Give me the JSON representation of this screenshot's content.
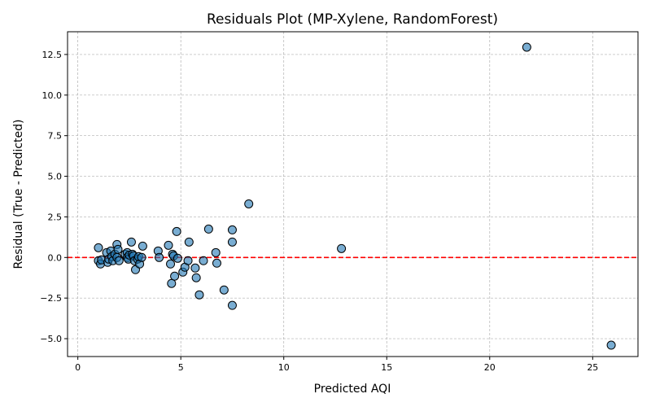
{
  "chart_data": {
    "type": "scatter",
    "title": "Residuals Plot (MP-Xylene, RandomForest)",
    "xlabel": "Predicted AQI",
    "ylabel": "Residual (True - Predicted)",
    "xlim": [
      -0.5,
      27.2
    ],
    "ylim": [
      -6.1,
      13.9
    ],
    "x_ticks": [
      0,
      5,
      10,
      15,
      20,
      25
    ],
    "y_ticks": [
      -5.0,
      -2.5,
      0.0,
      2.5,
      5.0,
      7.5,
      10.0,
      12.5
    ],
    "x_tick_labels": [
      "0",
      "5",
      "10",
      "15",
      "20",
      "25"
    ],
    "y_tick_labels": [
      "−5.0",
      "−2.5",
      "0.0",
      "2.5",
      "5.0",
      "7.5",
      "10.0",
      "12.5"
    ],
    "grid": true,
    "reference_line": {
      "y": 0,
      "color": "#ff0000",
      "style": "dashed"
    },
    "marker_color": "#1f77b4",
    "marker_edge_color": "#000000",
    "points": [
      {
        "x": 1.0,
        "y": 0.6
      },
      {
        "x": 1.0,
        "y": -0.2
      },
      {
        "x": 1.1,
        "y": -0.4
      },
      {
        "x": 1.15,
        "y": -0.15
      },
      {
        "x": 1.4,
        "y": 0.3
      },
      {
        "x": 1.45,
        "y": -0.3
      },
      {
        "x": 1.5,
        "y": -0.1
      },
      {
        "x": 1.6,
        "y": 0.4
      },
      {
        "x": 1.65,
        "y": 0.05
      },
      {
        "x": 1.7,
        "y": -0.2
      },
      {
        "x": 1.8,
        "y": 0.2
      },
      {
        "x": 1.9,
        "y": 0.8
      },
      {
        "x": 1.9,
        "y": 0.0
      },
      {
        "x": 1.95,
        "y": 0.5
      },
      {
        "x": 2.0,
        "y": -0.2
      },
      {
        "x": 2.3,
        "y": 0.2
      },
      {
        "x": 2.4,
        "y": 0.3
      },
      {
        "x": 2.4,
        "y": 0.0
      },
      {
        "x": 2.45,
        "y": -0.1
      },
      {
        "x": 2.5,
        "y": 0.15
      },
      {
        "x": 2.6,
        "y": 0.95
      },
      {
        "x": 2.65,
        "y": 0.2
      },
      {
        "x": 2.7,
        "y": 0.1
      },
      {
        "x": 2.75,
        "y": -0.2
      },
      {
        "x": 2.8,
        "y": -0.75
      },
      {
        "x": 2.9,
        "y": -0.1
      },
      {
        "x": 2.95,
        "y": 0.05
      },
      {
        "x": 3.0,
        "y": -0.4
      },
      {
        "x": 3.1,
        "y": 0.0
      },
      {
        "x": 3.15,
        "y": 0.7
      },
      {
        "x": 3.9,
        "y": 0.4
      },
      {
        "x": 3.95,
        "y": 0.0
      },
      {
        "x": 4.4,
        "y": 0.75
      },
      {
        "x": 4.5,
        "y": -0.4
      },
      {
        "x": 4.55,
        "y": -1.6
      },
      {
        "x": 4.6,
        "y": 0.2
      },
      {
        "x": 4.65,
        "y": 0.1
      },
      {
        "x": 4.7,
        "y": -1.15
      },
      {
        "x": 4.8,
        "y": 1.6
      },
      {
        "x": 4.85,
        "y": -0.05
      },
      {
        "x": 5.1,
        "y": -0.9
      },
      {
        "x": 5.2,
        "y": -0.6
      },
      {
        "x": 5.35,
        "y": -0.2
      },
      {
        "x": 5.4,
        "y": 0.95
      },
      {
        "x": 5.7,
        "y": -0.65
      },
      {
        "x": 5.75,
        "y": -1.25
      },
      {
        "x": 5.9,
        "y": -2.3
      },
      {
        "x": 6.1,
        "y": -0.2
      },
      {
        "x": 6.35,
        "y": 1.75
      },
      {
        "x": 6.7,
        "y": 0.3
      },
      {
        "x": 6.75,
        "y": -0.35
      },
      {
        "x": 7.1,
        "y": -2.0
      },
      {
        "x": 7.5,
        "y": 1.7
      },
      {
        "x": 7.5,
        "y": 0.95
      },
      {
        "x": 7.5,
        "y": -2.95
      },
      {
        "x": 8.3,
        "y": 3.3
      },
      {
        "x": 12.8,
        "y": 0.55
      },
      {
        "x": 21.8,
        "y": 12.95
      },
      {
        "x": 25.9,
        "y": -5.4
      }
    ]
  }
}
